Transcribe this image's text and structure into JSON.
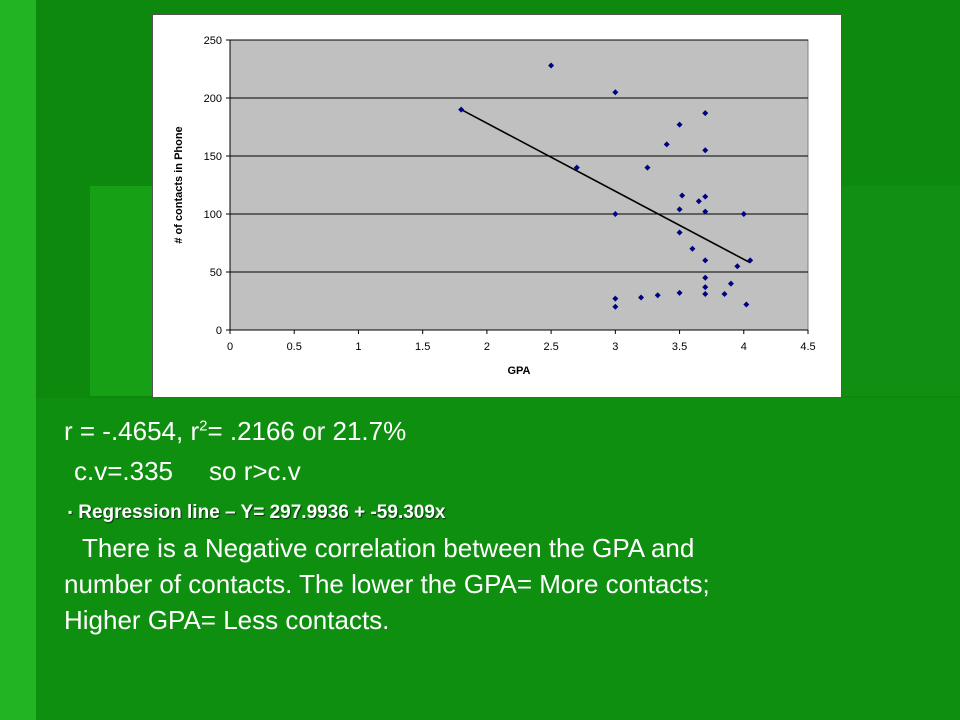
{
  "colors": {
    "background": "#0d8a0d",
    "plot_area": "#c0c0c0",
    "points": "#000080",
    "trendline": "#000000",
    "text": "#ffffff"
  },
  "chart_data": {
    "type": "scatter",
    "title": "",
    "xlabel": "GPA",
    "ylabel": "# of contacts in Phone",
    "xlim": [
      0,
      4.5
    ],
    "ylim": [
      0,
      250
    ],
    "x_ticks": [
      "0",
      "0.5",
      "1",
      "1.5",
      "2",
      "2.5",
      "3",
      "3.5",
      "4",
      "4.5"
    ],
    "y_ticks": [
      "0",
      "50",
      "100",
      "150",
      "200",
      "250"
    ],
    "grid": "horizontal",
    "legend": "none",
    "points": [
      {
        "x": 2.5,
        "y": 228
      },
      {
        "x": 3.0,
        "y": 205
      },
      {
        "x": 1.8,
        "y": 190
      },
      {
        "x": 3.7,
        "y": 187
      },
      {
        "x": 3.5,
        "y": 177
      },
      {
        "x": 3.4,
        "y": 160
      },
      {
        "x": 3.7,
        "y": 155
      },
      {
        "x": 3.25,
        "y": 140
      },
      {
        "x": 2.7,
        "y": 140
      },
      {
        "x": 3.52,
        "y": 116
      },
      {
        "x": 3.7,
        "y": 115
      },
      {
        "x": 3.65,
        "y": 111
      },
      {
        "x": 3.5,
        "y": 104
      },
      {
        "x": 3.7,
        "y": 102
      },
      {
        "x": 3.0,
        "y": 100
      },
      {
        "x": 4.0,
        "y": 100
      },
      {
        "x": 3.5,
        "y": 84
      },
      {
        "x": 3.6,
        "y": 70
      },
      {
        "x": 3.7,
        "y": 60
      },
      {
        "x": 4.05,
        "y": 60
      },
      {
        "x": 3.95,
        "y": 55
      },
      {
        "x": 3.7,
        "y": 45
      },
      {
        "x": 3.9,
        "y": 40
      },
      {
        "x": 3.7,
        "y": 37
      },
      {
        "x": 3.5,
        "y": 32
      },
      {
        "x": 3.7,
        "y": 31
      },
      {
        "x": 3.85,
        "y": 31
      },
      {
        "x": 3.33,
        "y": 30
      },
      {
        "x": 3.2,
        "y": 28
      },
      {
        "x": 3.0,
        "y": 27
      },
      {
        "x": 4.02,
        "y": 22
      },
      {
        "x": 3.0,
        "y": 20
      }
    ],
    "trendline": {
      "x": [
        1.8,
        4.05
      ],
      "y": [
        190,
        58
      ]
    }
  },
  "text": {
    "r_line_prefix": "r = -.4654, r",
    "r_line_sup": "2",
    "r_line_suffix": "= .2166  or 21.7%",
    "cv_left": "c.v=.335",
    "cv_right": "so r>c.v",
    "bullet_glyph": "▪",
    "regression": "Regression line – Y= 297.9936 + -59.309x",
    "para_line1": "There is a Negative correlation between the GPA and",
    "para_line2": "number of contacts. The lower the GPA= More contacts;",
    "para_line3": "Higher GPA= Less contacts."
  }
}
